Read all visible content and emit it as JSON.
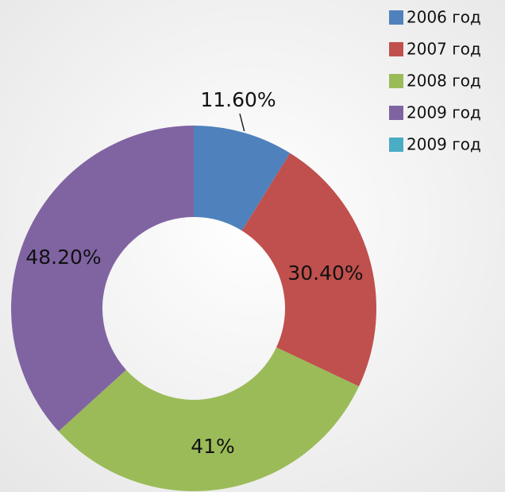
{
  "chart_data": {
    "type": "donut",
    "categories": [
      "2006 год",
      "2007 год",
      "2008 год",
      "2009 год",
      "2009 год"
    ],
    "values": [
      11.6,
      30.4,
      41,
      48.2,
      null
    ],
    "value_labels": [
      "11.60%",
      "30.40%",
      "41%",
      "48.20%",
      null
    ],
    "colors": [
      "#4f81bd",
      "#c0504d",
      "#9bbb59",
      "#8064a2",
      "#4bacc6"
    ],
    "legend": "top-right"
  }
}
